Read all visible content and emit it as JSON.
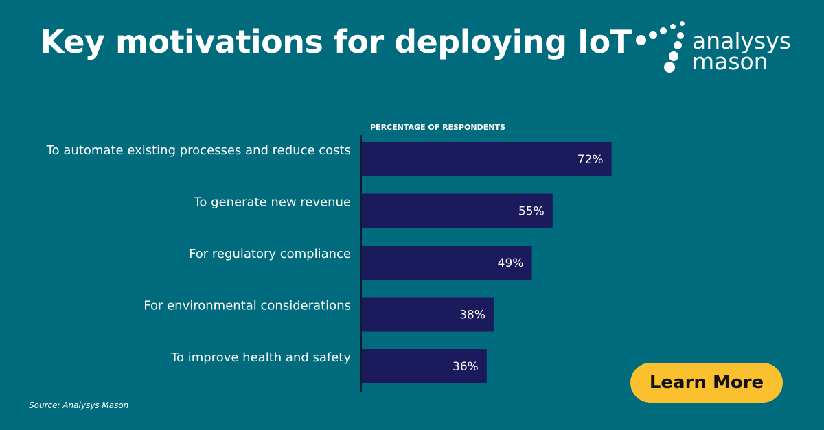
{
  "header": {
    "title": "Key motivations for deploying IoT"
  },
  "logo": {
    "line1": "analysys",
    "line2": "mason",
    "icon": "dots-logo-icon"
  },
  "chart_data": {
    "type": "bar",
    "orientation": "horizontal",
    "axis_label": "PERCENTAGE OF RESPONDENTS",
    "categories": [
      "To automate existing processes and reduce costs",
      "To generate new revenue",
      "For regulatory compliance",
      "For environmental considerations",
      "To improve health and safety"
    ],
    "values": [
      72,
      55,
      49,
      38,
      36
    ],
    "value_labels": [
      "72%",
      "55%",
      "49%",
      "38%",
      "36%"
    ],
    "xlim": [
      0,
      100
    ],
    "grid": false,
    "bar_color": "#1b1a5c"
  },
  "footer": {
    "source": "Source: Analysys Mason"
  },
  "cta": {
    "label": "Learn More",
    "color": "#fbc02d"
  },
  "colors": {
    "background": "#006b7d",
    "text": "#ffffff"
  }
}
